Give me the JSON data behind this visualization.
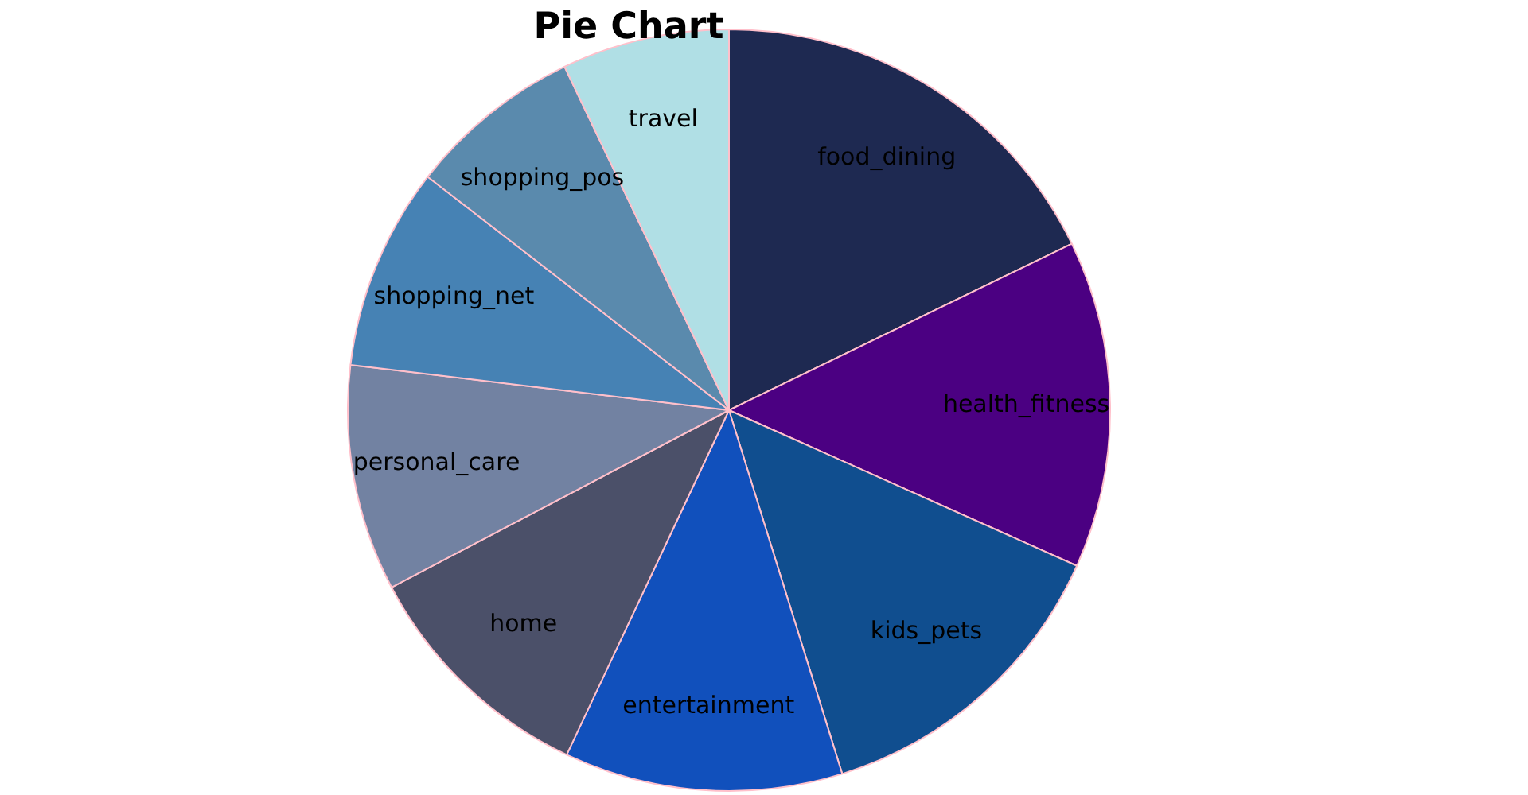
{
  "chart_data": {
    "type": "pie",
    "title": "Pie Chart",
    "categories": [
      "food_dining",
      "health_fitness",
      "kids_pets",
      "entertainment",
      "home",
      "personal_care",
      "shopping_net",
      "shopping_pos",
      "travel"
    ],
    "values": [
      17.8,
      13.9,
      13.5,
      11.8,
      10.3,
      9.6,
      8.6,
      7.4,
      7.1
    ],
    "colors": [
      "#1e2951",
      "#4b0082",
      "#104e8f",
      "#1150bc",
      "#4b5069",
      "#7282a2",
      "#4682b4",
      "#5a8aad",
      "#b0dfe5"
    ]
  }
}
